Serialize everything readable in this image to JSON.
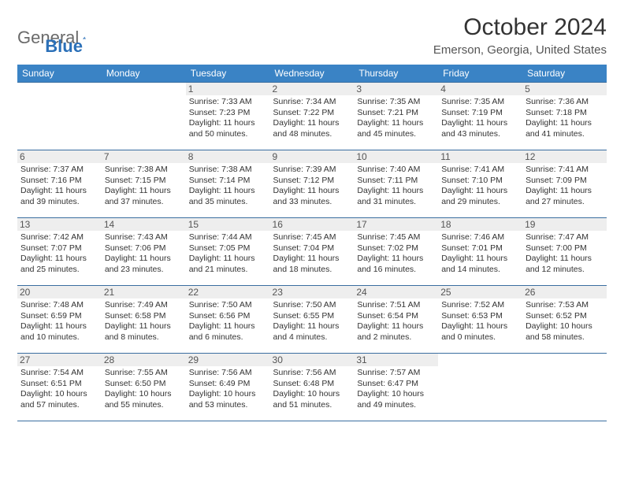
{
  "brand": {
    "part1": "General",
    "part2": "Blue"
  },
  "title": "October 2024",
  "location": "Emerson, Georgia, United States",
  "colors": {
    "header_bg": "#3a83c5",
    "header_text": "#ffffff",
    "rule": "#3a6ea0",
    "daynum_bg": "#eeeeee",
    "text": "#333333",
    "logo_grey": "#6a6a6a",
    "logo_blue": "#2b70b8"
  },
  "weekdays": [
    "Sunday",
    "Monday",
    "Tuesday",
    "Wednesday",
    "Thursday",
    "Friday",
    "Saturday"
  ],
  "weeks": [
    [
      {
        "day": "",
        "sunrise": "",
        "sunset": "",
        "daylight": ""
      },
      {
        "day": "",
        "sunrise": "",
        "sunset": "",
        "daylight": ""
      },
      {
        "day": "1",
        "sunrise": "Sunrise: 7:33 AM",
        "sunset": "Sunset: 7:23 PM",
        "daylight": "Daylight: 11 hours and 50 minutes."
      },
      {
        "day": "2",
        "sunrise": "Sunrise: 7:34 AM",
        "sunset": "Sunset: 7:22 PM",
        "daylight": "Daylight: 11 hours and 48 minutes."
      },
      {
        "day": "3",
        "sunrise": "Sunrise: 7:35 AM",
        "sunset": "Sunset: 7:21 PM",
        "daylight": "Daylight: 11 hours and 45 minutes."
      },
      {
        "day": "4",
        "sunrise": "Sunrise: 7:35 AM",
        "sunset": "Sunset: 7:19 PM",
        "daylight": "Daylight: 11 hours and 43 minutes."
      },
      {
        "day": "5",
        "sunrise": "Sunrise: 7:36 AM",
        "sunset": "Sunset: 7:18 PM",
        "daylight": "Daylight: 11 hours and 41 minutes."
      }
    ],
    [
      {
        "day": "6",
        "sunrise": "Sunrise: 7:37 AM",
        "sunset": "Sunset: 7:16 PM",
        "daylight": "Daylight: 11 hours and 39 minutes."
      },
      {
        "day": "7",
        "sunrise": "Sunrise: 7:38 AM",
        "sunset": "Sunset: 7:15 PM",
        "daylight": "Daylight: 11 hours and 37 minutes."
      },
      {
        "day": "8",
        "sunrise": "Sunrise: 7:38 AM",
        "sunset": "Sunset: 7:14 PM",
        "daylight": "Daylight: 11 hours and 35 minutes."
      },
      {
        "day": "9",
        "sunrise": "Sunrise: 7:39 AM",
        "sunset": "Sunset: 7:12 PM",
        "daylight": "Daylight: 11 hours and 33 minutes."
      },
      {
        "day": "10",
        "sunrise": "Sunrise: 7:40 AM",
        "sunset": "Sunset: 7:11 PM",
        "daylight": "Daylight: 11 hours and 31 minutes."
      },
      {
        "day": "11",
        "sunrise": "Sunrise: 7:41 AM",
        "sunset": "Sunset: 7:10 PM",
        "daylight": "Daylight: 11 hours and 29 minutes."
      },
      {
        "day": "12",
        "sunrise": "Sunrise: 7:41 AM",
        "sunset": "Sunset: 7:09 PM",
        "daylight": "Daylight: 11 hours and 27 minutes."
      }
    ],
    [
      {
        "day": "13",
        "sunrise": "Sunrise: 7:42 AM",
        "sunset": "Sunset: 7:07 PM",
        "daylight": "Daylight: 11 hours and 25 minutes."
      },
      {
        "day": "14",
        "sunrise": "Sunrise: 7:43 AM",
        "sunset": "Sunset: 7:06 PM",
        "daylight": "Daylight: 11 hours and 23 minutes."
      },
      {
        "day": "15",
        "sunrise": "Sunrise: 7:44 AM",
        "sunset": "Sunset: 7:05 PM",
        "daylight": "Daylight: 11 hours and 21 minutes."
      },
      {
        "day": "16",
        "sunrise": "Sunrise: 7:45 AM",
        "sunset": "Sunset: 7:04 PM",
        "daylight": "Daylight: 11 hours and 18 minutes."
      },
      {
        "day": "17",
        "sunrise": "Sunrise: 7:45 AM",
        "sunset": "Sunset: 7:02 PM",
        "daylight": "Daylight: 11 hours and 16 minutes."
      },
      {
        "day": "18",
        "sunrise": "Sunrise: 7:46 AM",
        "sunset": "Sunset: 7:01 PM",
        "daylight": "Daylight: 11 hours and 14 minutes."
      },
      {
        "day": "19",
        "sunrise": "Sunrise: 7:47 AM",
        "sunset": "Sunset: 7:00 PM",
        "daylight": "Daylight: 11 hours and 12 minutes."
      }
    ],
    [
      {
        "day": "20",
        "sunrise": "Sunrise: 7:48 AM",
        "sunset": "Sunset: 6:59 PM",
        "daylight": "Daylight: 11 hours and 10 minutes."
      },
      {
        "day": "21",
        "sunrise": "Sunrise: 7:49 AM",
        "sunset": "Sunset: 6:58 PM",
        "daylight": "Daylight: 11 hours and 8 minutes."
      },
      {
        "day": "22",
        "sunrise": "Sunrise: 7:50 AM",
        "sunset": "Sunset: 6:56 PM",
        "daylight": "Daylight: 11 hours and 6 minutes."
      },
      {
        "day": "23",
        "sunrise": "Sunrise: 7:50 AM",
        "sunset": "Sunset: 6:55 PM",
        "daylight": "Daylight: 11 hours and 4 minutes."
      },
      {
        "day": "24",
        "sunrise": "Sunrise: 7:51 AM",
        "sunset": "Sunset: 6:54 PM",
        "daylight": "Daylight: 11 hours and 2 minutes."
      },
      {
        "day": "25",
        "sunrise": "Sunrise: 7:52 AM",
        "sunset": "Sunset: 6:53 PM",
        "daylight": "Daylight: 11 hours and 0 minutes."
      },
      {
        "day": "26",
        "sunrise": "Sunrise: 7:53 AM",
        "sunset": "Sunset: 6:52 PM",
        "daylight": "Daylight: 10 hours and 58 minutes."
      }
    ],
    [
      {
        "day": "27",
        "sunrise": "Sunrise: 7:54 AM",
        "sunset": "Sunset: 6:51 PM",
        "daylight": "Daylight: 10 hours and 57 minutes."
      },
      {
        "day": "28",
        "sunrise": "Sunrise: 7:55 AM",
        "sunset": "Sunset: 6:50 PM",
        "daylight": "Daylight: 10 hours and 55 minutes."
      },
      {
        "day": "29",
        "sunrise": "Sunrise: 7:56 AM",
        "sunset": "Sunset: 6:49 PM",
        "daylight": "Daylight: 10 hours and 53 minutes."
      },
      {
        "day": "30",
        "sunrise": "Sunrise: 7:56 AM",
        "sunset": "Sunset: 6:48 PM",
        "daylight": "Daylight: 10 hours and 51 minutes."
      },
      {
        "day": "31",
        "sunrise": "Sunrise: 7:57 AM",
        "sunset": "Sunset: 6:47 PM",
        "daylight": "Daylight: 10 hours and 49 minutes."
      },
      {
        "day": "",
        "sunrise": "",
        "sunset": "",
        "daylight": ""
      },
      {
        "day": "",
        "sunrise": "",
        "sunset": "",
        "daylight": ""
      }
    ]
  ]
}
